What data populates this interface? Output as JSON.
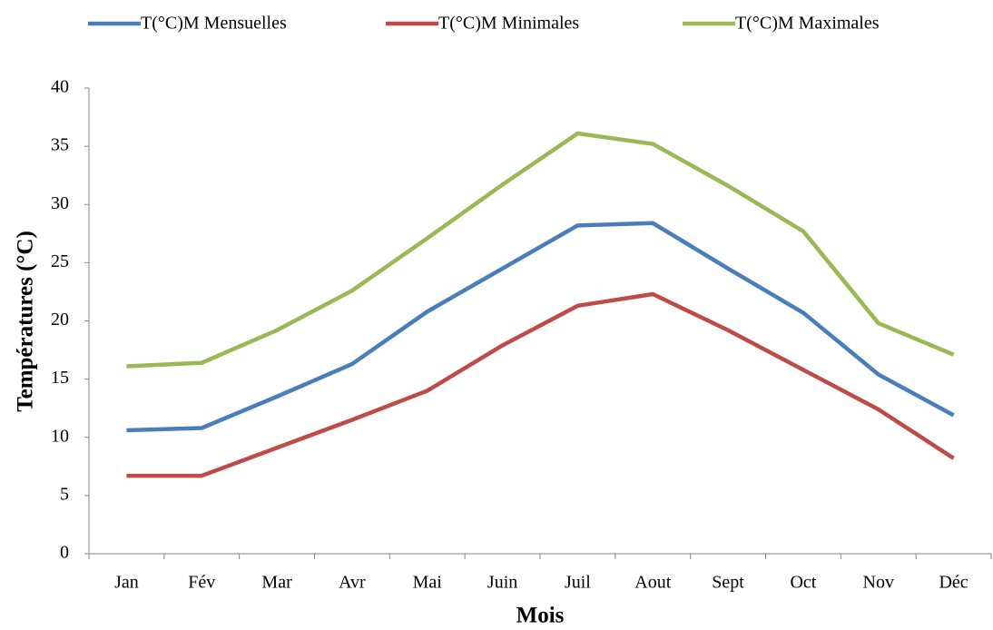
{
  "chart_data": {
    "type": "line",
    "xlabel": "Mois",
    "ylabel": "Températures (°C)",
    "categories": [
      "Jan",
      "Fév",
      "Mar",
      "Avr",
      "Mai",
      "Juin",
      "Juil",
      "Aout",
      "Sept",
      "Oct",
      "Nov",
      "Déc"
    ],
    "series": [
      {
        "name": "T(°C)M Mensuelles",
        "color": "#4a7ebb",
        "values": [
          10.6,
          10.8,
          13.5,
          16.3,
          20.8,
          24.5,
          28.2,
          28.4,
          24.5,
          20.7,
          15.4,
          11.9
        ]
      },
      {
        "name": "T(°C)M Minimales",
        "color": "#be4b48",
        "values": [
          6.7,
          6.7,
          9.1,
          11.5,
          14.0,
          17.9,
          21.3,
          22.3,
          19.2,
          15.8,
          12.4,
          8.2
        ]
      },
      {
        "name": "T(°C)M Maximales",
        "color": "#98b954",
        "values": [
          16.1,
          16.4,
          19.2,
          22.6,
          27.1,
          31.7,
          36.1,
          35.2,
          31.6,
          27.7,
          19.8,
          17.1
        ]
      }
    ],
    "ylim": [
      0,
      40
    ],
    "yticks": [
      0,
      5,
      10,
      15,
      20,
      25,
      30,
      35,
      40
    ],
    "grid": false,
    "legend": "top"
  }
}
